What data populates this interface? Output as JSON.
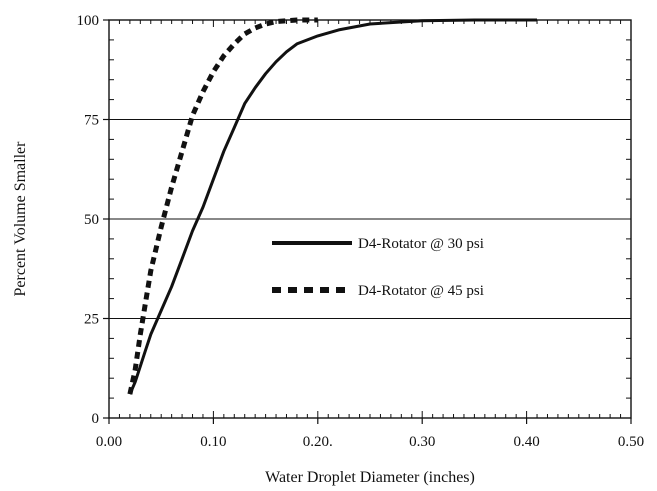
{
  "chart_data": {
    "type": "line",
    "title": "",
    "xlabel": "Water Droplet Diameter (inches)",
    "ylabel": "Percent Volume Smaller",
    "xlim": [
      0.0,
      0.5
    ],
    "ylim": [
      0,
      100
    ],
    "x_ticks": [
      {
        "value": 0.0,
        "label": "0.00"
      },
      {
        "value": 0.1,
        "label": "0.10"
      },
      {
        "value": 0.2,
        "label": "0.20."
      },
      {
        "value": 0.3,
        "label": "0.30"
      },
      {
        "value": 0.4,
        "label": "0.40"
      },
      {
        "value": 0.5,
        "label": "0.50"
      }
    ],
    "y_ticks": [
      {
        "value": 0,
        "label": "0"
      },
      {
        "value": 25,
        "label": "25"
      },
      {
        "value": 50,
        "label": "50"
      },
      {
        "value": 75,
        "label": "75"
      },
      {
        "value": 100,
        "label": "100"
      }
    ],
    "grid": "horizontal lines at 25, 50, 75, 100",
    "legend_position": "center-right",
    "series": [
      {
        "name": "D4-Rotator @ 30 psi",
        "style": "solid",
        "color": "#111111",
        "points": [
          [
            0.02,
            6
          ],
          [
            0.025,
            9
          ],
          [
            0.03,
            13
          ],
          [
            0.035,
            17
          ],
          [
            0.04,
            21
          ],
          [
            0.05,
            27
          ],
          [
            0.06,
            33
          ],
          [
            0.07,
            40
          ],
          [
            0.08,
            47
          ],
          [
            0.09,
            53
          ],
          [
            0.1,
            60
          ],
          [
            0.11,
            67
          ],
          [
            0.12,
            73
          ],
          [
            0.13,
            79
          ],
          [
            0.14,
            83
          ],
          [
            0.15,
            86.5
          ],
          [
            0.16,
            89.5
          ],
          [
            0.17,
            92
          ],
          [
            0.18,
            94
          ],
          [
            0.2,
            96
          ],
          [
            0.22,
            97.5
          ],
          [
            0.25,
            99
          ],
          [
            0.28,
            99.5
          ],
          [
            0.3,
            99.8
          ],
          [
            0.35,
            100
          ],
          [
            0.41,
            100
          ]
        ]
      },
      {
        "name": "D4-Rotator @ 45 psi",
        "style": "dashed",
        "color": "#111111",
        "points": [
          [
            0.02,
            6
          ],
          [
            0.025,
            12
          ],
          [
            0.03,
            21
          ],
          [
            0.035,
            29
          ],
          [
            0.04,
            37
          ],
          [
            0.05,
            48
          ],
          [
            0.06,
            58
          ],
          [
            0.07,
            67
          ],
          [
            0.08,
            76
          ],
          [
            0.09,
            82
          ],
          [
            0.1,
            87
          ],
          [
            0.11,
            91
          ],
          [
            0.12,
            94
          ],
          [
            0.13,
            96.5
          ],
          [
            0.14,
            98
          ],
          [
            0.15,
            99
          ],
          [
            0.16,
            99.6
          ],
          [
            0.18,
            100
          ],
          [
            0.2,
            100
          ]
        ]
      }
    ]
  }
}
